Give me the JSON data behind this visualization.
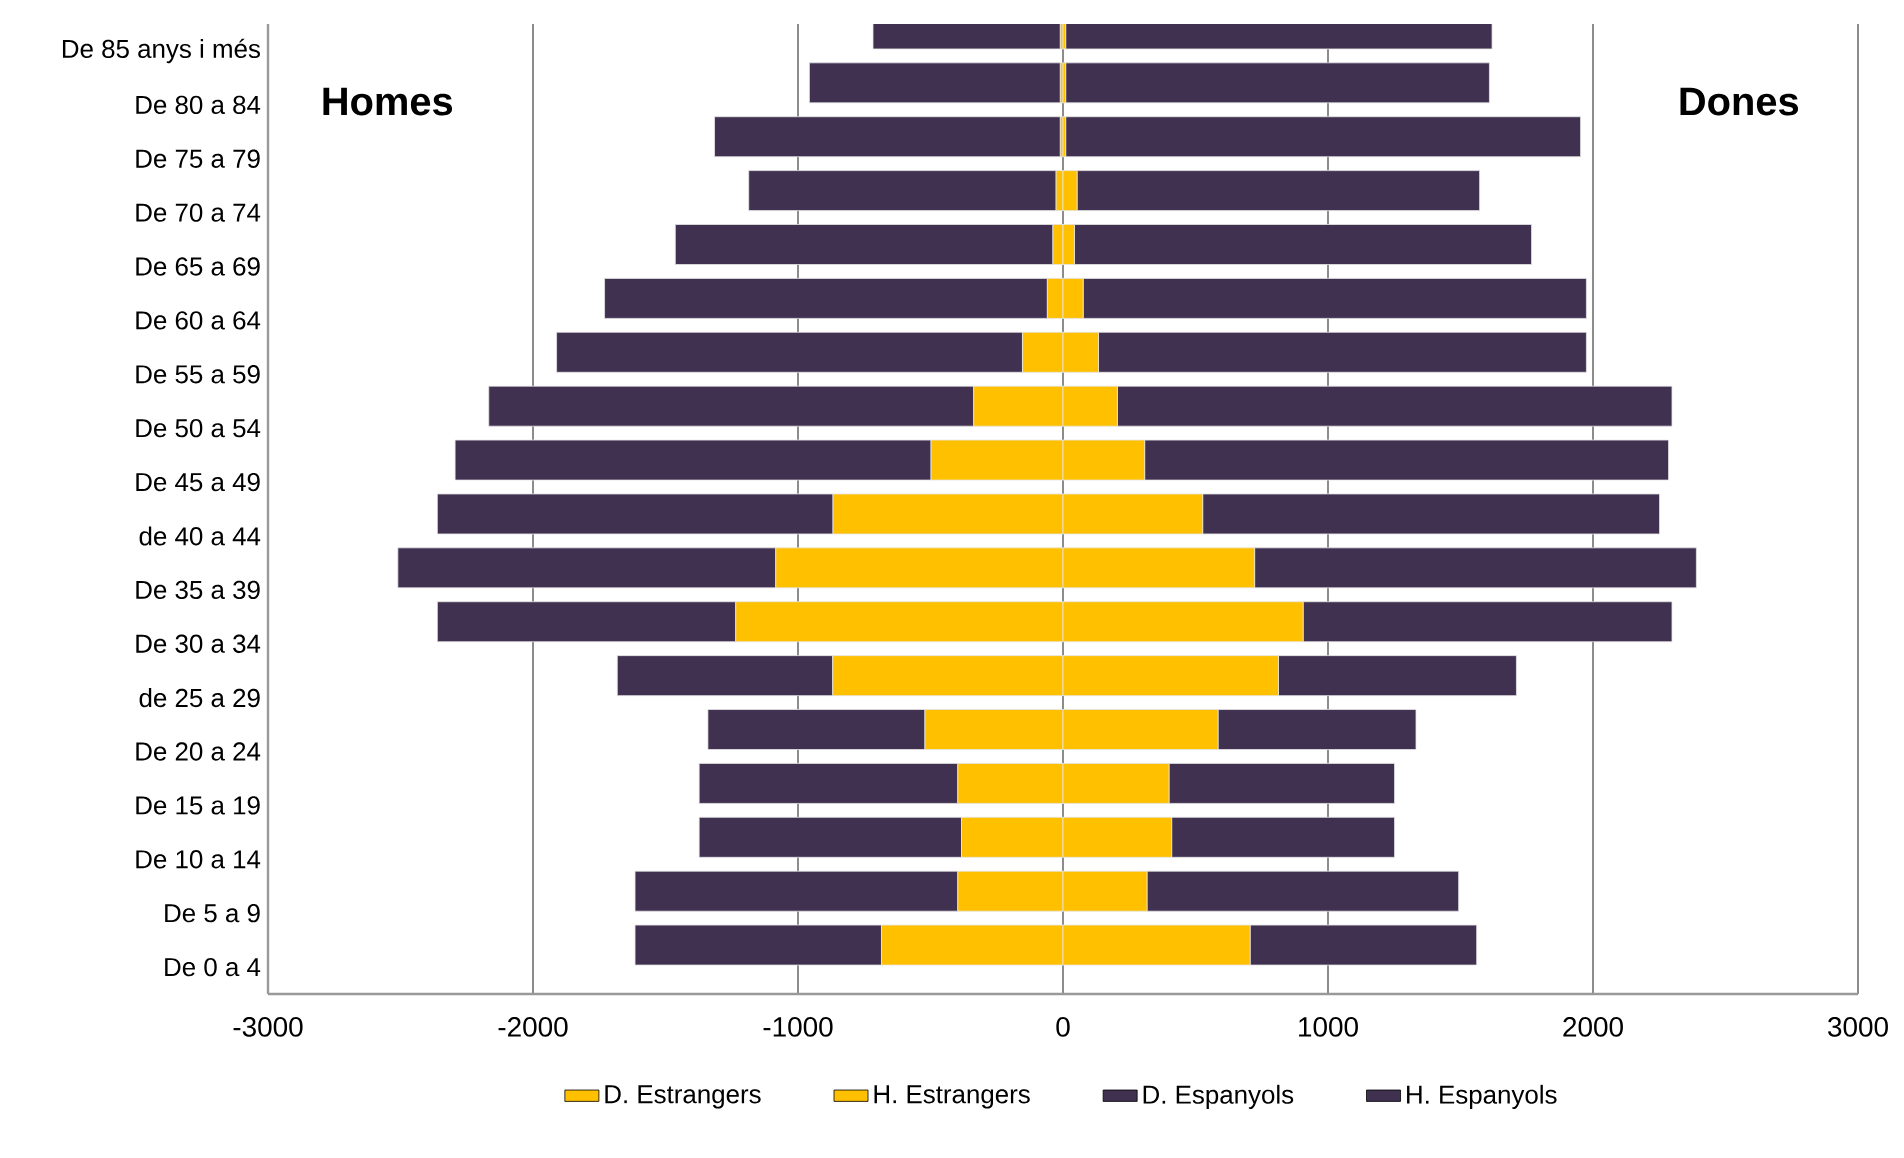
{
  "chart_data": {
    "type": "bar",
    "orientation": "horizontal",
    "stacked": true,
    "categories": [
      "De 85 anys i més",
      "De 80 a 84",
      "De 75 a 79",
      "De 70 a 74",
      "De 65 a 69",
      "De 60 a 64",
      "De 55 a 59",
      "De 50 a 54",
      "De 45 a 49",
      "de 40 a 44",
      "De 35 a 39",
      "De 30 a 34",
      "de 25 a 29",
      "De 20 a 24",
      "De 15 a 19",
      "De 10 a 14",
      "De 5 a 9",
      "De 0 a 4"
    ],
    "series": [
      {
        "name": "D. Estrangers",
        "color": "#ffc000",
        "values": [
          10,
          10,
          10,
          53,
          43,
          76,
          134,
          205,
          308,
          527,
          723,
          906,
          813,
          585,
          400,
          410,
          317,
          706
        ]
      },
      {
        "name": "H. Estrangers",
        "color": "#ffc000",
        "values": [
          -10,
          -10,
          -10,
          -26,
          -38,
          -59,
          -153,
          -337,
          -498,
          -868,
          -1084,
          -1235,
          -869,
          -521,
          -397,
          -383,
          -397,
          -685
        ]
      },
      {
        "name": "D. Espanyols",
        "color": "#403151",
        "values": [
          1609,
          1599,
          1943,
          1519,
          1725,
          1899,
          1841,
          2093,
          1977,
          1724,
          1667,
          1392,
          898,
          747,
          851,
          841,
          1176,
          855
        ]
      },
      {
        "name": "H. Espanyols",
        "color": "#403151",
        "values": [
          -707,
          -947,
          -1305,
          -1160,
          -1425,
          -1671,
          -1758,
          -1830,
          -1796,
          -1493,
          -1426,
          -1126,
          -813,
          -819,
          -976,
          -990,
          -1218,
          -930
        ]
      }
    ],
    "xlim": [
      -3000,
      3000
    ],
    "xticks": [
      -3000,
      -2000,
      -1000,
      0,
      1000,
      2000,
      3000
    ],
    "grid": "x",
    "legend": "bottom",
    "annotations": [
      "Homes",
      "Dones"
    ]
  }
}
